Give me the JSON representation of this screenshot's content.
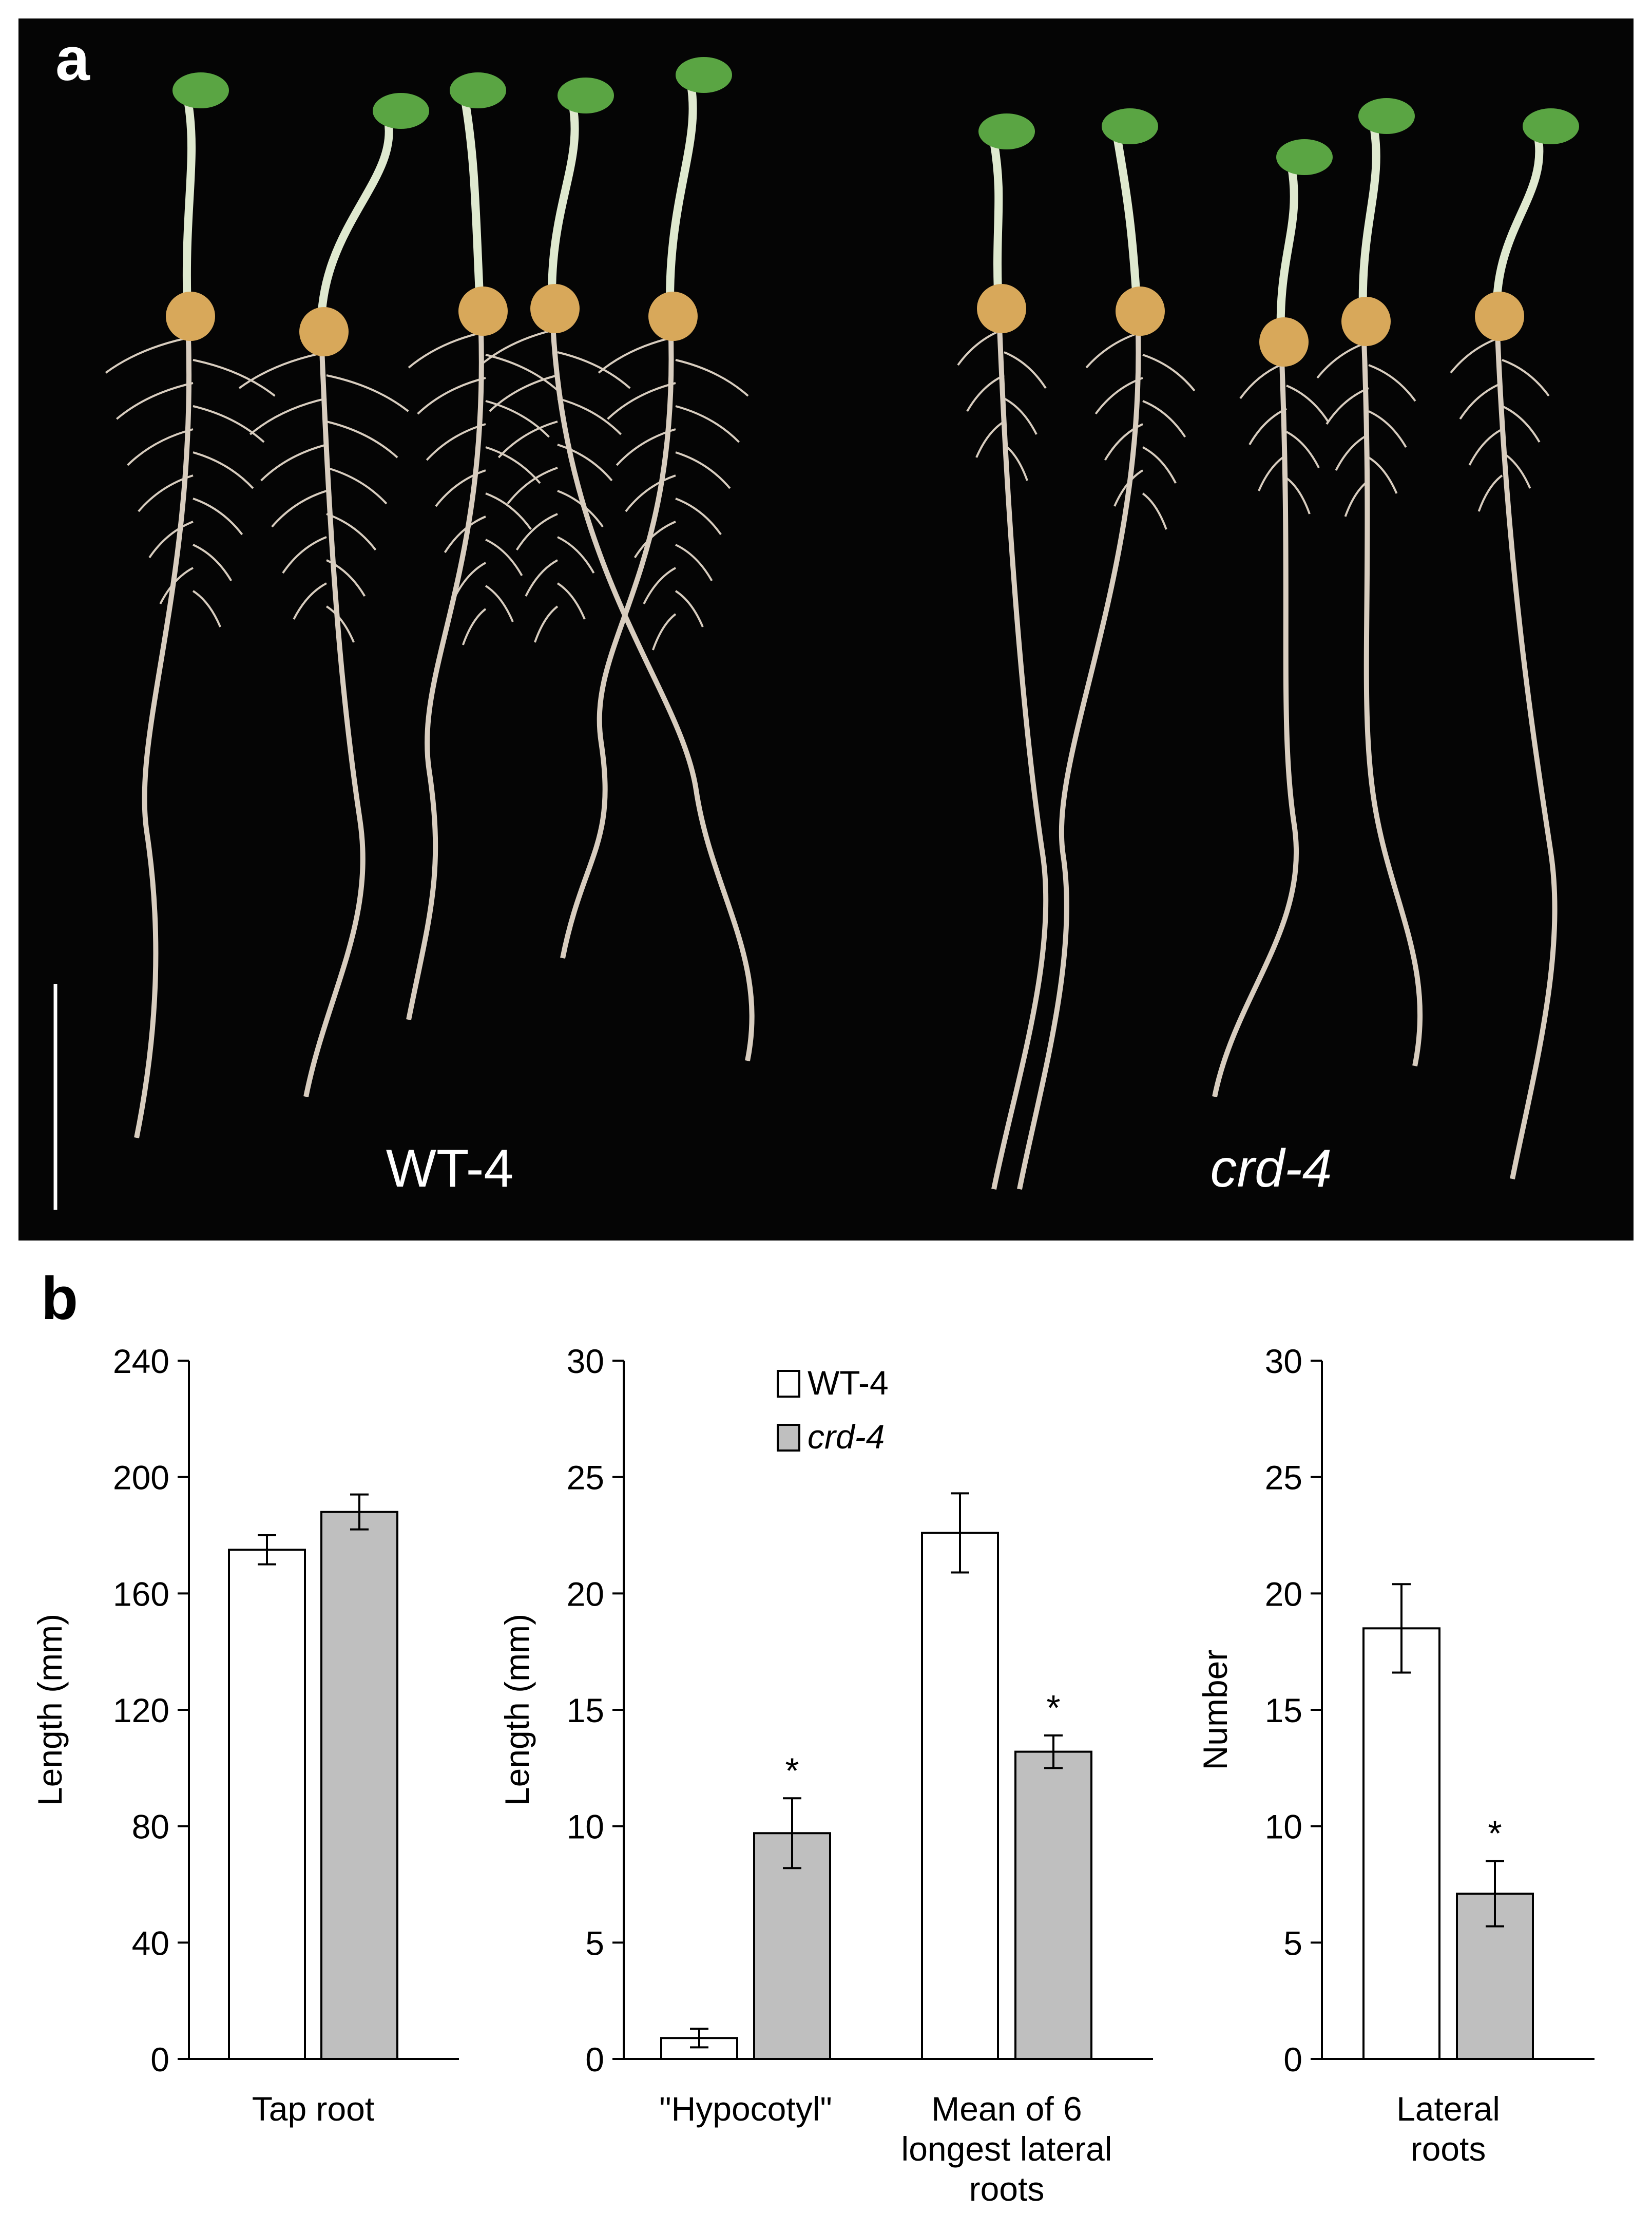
{
  "figure": {
    "panel_a_label": "a",
    "panel_b_label": "b",
    "photo": {
      "group_left_label": "WT-4",
      "group_right_label": "crd-4",
      "colors": {
        "background": "#050505",
        "shoot": "#5aa543",
        "root": "#d8cdbf",
        "seed": "#d8a85a"
      }
    }
  },
  "chart_data": [
    {
      "type": "bar",
      "categories": [
        "Tap root"
      ],
      "series": [
        {
          "name": "WT-4",
          "values": [
            175
          ],
          "errors": [
            5
          ],
          "color": "#ffffff"
        },
        {
          "name": "crd-4",
          "values": [
            188
          ],
          "errors": [
            6
          ],
          "color": "#bfbfbf"
        }
      ],
      "ylabel": "Length (mm)",
      "ylim": [
        0,
        240
      ],
      "yticks": [
        0,
        40,
        80,
        120,
        160,
        200,
        240
      ],
      "significance": [
        [
          null
        ],
        [
          null
        ]
      ],
      "legend": false
    },
    {
      "type": "bar",
      "categories": [
        "\"Hypocotyl\"",
        "Mean of 6 longest lateral roots"
      ],
      "category_lines": [
        [
          "\"Hypocotyl\""
        ],
        [
          "Mean of 6",
          "longest lateral",
          "roots"
        ]
      ],
      "series": [
        {
          "name": "WT-4",
          "values": [
            0.9,
            22.6
          ],
          "errors": [
            0.4,
            1.7
          ],
          "color": "#ffffff"
        },
        {
          "name": "crd-4",
          "values": [
            9.7,
            13.2
          ],
          "errors": [
            1.5,
            0.7
          ],
          "color": "#bfbfbf"
        }
      ],
      "ylabel": "Length (mm)",
      "ylim": [
        0,
        30
      ],
      "yticks": [
        0,
        5,
        10,
        15,
        20,
        25,
        30
      ],
      "significance": [
        [
          null,
          null
        ],
        [
          "*",
          "*"
        ]
      ],
      "legend": true,
      "legend_position": "top-left"
    },
    {
      "type": "bar",
      "categories": [
        "Lateral roots"
      ],
      "category_lines": [
        [
          "Lateral",
          "roots"
        ]
      ],
      "series": [
        {
          "name": "WT-4",
          "values": [
            18.5
          ],
          "errors": [
            1.9
          ],
          "color": "#ffffff"
        },
        {
          "name": "crd-4",
          "values": [
            7.1
          ],
          "errors": [
            1.4
          ],
          "color": "#bfbfbf"
        }
      ],
      "ylabel": "Number",
      "ylim": [
        0,
        30
      ],
      "yticks": [
        0,
        5,
        10,
        15,
        20,
        25,
        30
      ],
      "significance": [
        [
          null
        ],
        [
          "*"
        ]
      ],
      "legend": false
    }
  ]
}
